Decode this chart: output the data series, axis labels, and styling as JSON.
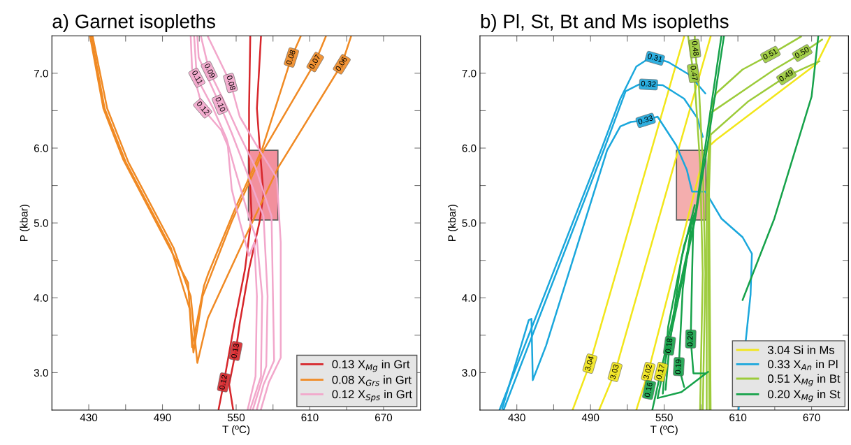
{
  "chart_data": [
    {
      "type": "line",
      "title": "a) Garnet isopleths",
      "xlabel": "T (ºC)",
      "ylabel": "P (kbar)",
      "xlim": [
        400,
        700
      ],
      "ylim": [
        2.5,
        7.5
      ],
      "xticks": [
        430,
        {
          "value": 460,
          "label": null
        },
        490,
        {
          "value": 520,
          "label": null
        },
        550,
        {
          "value": 580,
          "label": null
        },
        610,
        {
          "value": 640,
          "label": null
        },
        670
      ],
      "yticks": [
        {
          "value": 3,
          "label": "3.0"
        },
        {
          "value": 3.5,
          "label": null
        },
        {
          "value": 4,
          "label": "4.0"
        },
        {
          "value": 4.5,
          "label": null
        },
        {
          "value": 5,
          "label": "5.0"
        },
        {
          "value": 5.5,
          "label": null
        },
        {
          "value": 6,
          "label": "6.0"
        },
        {
          "value": 6.5,
          "label": null
        },
        {
          "value": 7,
          "label": "7.0"
        }
      ],
      "grid": false,
      "legend": "bottom right",
      "series": [
        {
          "name": "0.13 X$_{Mg}$ in Grt",
          "color": "#d7262b",
          "x": [
            570.2,
            566.9,
            569.1,
            572.3,
            569.1,
            560.5,
            552.9,
            549.7,
            544.3,
            547.5
          ],
          "values": [
            7.49,
            6.53,
            6.03,
            5.38,
            5.02,
            4.38,
            3.66,
            3.29,
            2.84,
            2.51
          ]
        },
        {
          "color": "#d7262b",
          "x": [
            561.5,
            560.5,
            560.5,
            562.6,
            557.2,
            548.6,
            540,
            535.7
          ],
          "values": [
            7.49,
            6.53,
            5.81,
            5.09,
            4.38,
            3.66,
            2.87,
            2.51
          ]
        },
        {
          "name": "0.08 X$_{Grs}$ in Grt",
          "color": "#f08a24",
          "x": [
            602.5,
            595,
            571.2,
            548.6,
            527,
            523.8,
            514.1,
            510.9,
            494.7,
            458,
            441.9,
            431.1
          ],
          "values": [
            7.49,
            7.21,
            5.99,
            5.17,
            4.31,
            4.16,
            3.34,
            4.2,
            4.7,
            5.85,
            6.53,
            7.49
          ]
        },
        {
          "color": "#f08a24",
          "x": [
            623,
            614.4,
            572.3,
            546.4,
            522.7,
            515.2,
            512.4,
            496.8,
            460.2,
            442.9,
            432.2
          ],
          "values": [
            7.49,
            7.15,
            5.97,
            5.02,
            4.02,
            3.27,
            3.84,
            4.67,
            5.81,
            6.53,
            7.49
          ]
        },
        {
          "color": "#f08a24",
          "x": [
            643.5,
            636,
            584.2,
            559.4,
            527,
            518.4,
            513,
            499,
            462.3,
            445,
            433.2
          ],
          "values": [
            7.49,
            7.12,
            5.74,
            4.88,
            3.73,
            3.13,
            4.02,
            4.67,
            5.81,
            6.53,
            7.49
          ]
        },
        {
          "name": "0.12 X$_{Sps}$ in Grt",
          "color": "#f2a7cb",
          "x": [
            513,
            514.1,
            522.7,
            537.8,
            543.2,
            546.4,
            552.9,
            560.5,
            564.8,
            566.9,
            565.8,
            559.4
          ],
          "values": [
            7.49,
            7.06,
            6.53,
            6.24,
            6.03,
            5.45,
            5.02,
            4.56,
            4.74,
            4.02,
            2.95,
            2.51
          ]
        },
        {
          "color": "#f2a7cb",
          "x": [
            515.8,
            518,
            531.3,
            542.1,
            548.6,
            561.5,
            566.9,
            571.2,
            570.2,
            561.5
          ],
          "values": [
            7.49,
            6.94,
            6.53,
            6.13,
            5.74,
            5.02,
            4.77,
            4.02,
            2.95,
            2.51
          ]
        },
        {
          "color": "#f2a7cb",
          "x": [
            518.4,
            519.5,
            536.7,
            546.4,
            557.2,
            572.3,
            575.6,
            574.5,
            563.7
          ],
          "values": [
            7.49,
            7.21,
            6.58,
            6.2,
            5.74,
            5.09,
            4.02,
            3.09,
            2.51
          ]
        },
        {
          "color": "#f2a7cb",
          "x": [
            521.4,
            528.1,
            542.1,
            552.9,
            565.8,
            578.8,
            580.9,
            572.3,
            566.9
          ],
          "values": [
            7.49,
            7.03,
            6.56,
            6.17,
            5.74,
            5.09,
            3.16,
            2.84,
            2.51
          ]
        },
        {
          "color": "#f2a7cb",
          "x": [
            527,
            545.4,
            552.9,
            565.8,
            583.1,
            586.3,
            586.3,
            576.6,
            570.2
          ],
          "values": [
            7.49,
            6.87,
            6.42,
            6.06,
            5.6,
            4.74,
            3.2,
            2.87,
            2.51
          ]
        },
        {
          "type": "area",
          "color": "#f07585",
          "x": [
            560,
            584,
            584,
            560
          ],
          "values": [
            5.04,
            5.04,
            5.97,
            5.97
          ]
        }
      ],
      "annotations": [
        {
          "text": "0.13",
          "x": 549.7,
          "y": 3.29
        },
        {
          "text": "0.12",
          "x": 540,
          "y": 2.87
        },
        {
          "text": "0.08",
          "x": 595,
          "y": 7.21
        },
        {
          "text": "0.07",
          "x": 614.4,
          "y": 7.15
        },
        {
          "text": "0.06",
          "x": 636,
          "y": 7.12
        },
        {
          "text": "0.12",
          "x": 522.7,
          "y": 6.53
        },
        {
          "text": "0.11",
          "x": 518,
          "y": 6.94
        },
        {
          "text": "0.10",
          "x": 536.7,
          "y": 6.58
        },
        {
          "text": "0.09",
          "x": 528.1,
          "y": 7.03
        },
        {
          "text": "0.08",
          "x": 545.4,
          "y": 6.87
        }
      ]
    },
    {
      "type": "line",
      "title": "b) Pl, St, Bt and Ms isopleths",
      "xlabel": "T (ºC)",
      "ylabel": "P (kbar)",
      "xlim": [
        400,
        700
      ],
      "ylim": [
        2.5,
        7.5
      ],
      "xticks": [
        430,
        {
          "value": 460,
          "label": null
        },
        490,
        {
          "value": 520,
          "label": null
        },
        550,
        {
          "value": 580,
          "label": null
        },
        610,
        {
          "value": 640,
          "label": null
        },
        670
      ],
      "yticks": [
        {
          "value": 3,
          "label": "3.0"
        },
        {
          "value": 3.5,
          "label": null
        },
        {
          "value": 4,
          "label": "4.0"
        },
        {
          "value": 4.5,
          "label": null
        },
        {
          "value": 5,
          "label": "5.0"
        },
        {
          "value": 5.5,
          "label": null
        },
        {
          "value": 6,
          "label": "6.0"
        },
        {
          "value": 6.5,
          "label": null
        },
        {
          "value": 7,
          "label": "7.0"
        }
      ],
      "grid": false,
      "legend": "bottom right",
      "series": [
        {
          "name": "3.04 Si in Ms",
          "color": "#f2e61a",
          "x": [
            475.4,
            489.5,
            566.2
          ],
          "values": [
            2.5,
            3.12,
            7.49
          ]
        },
        {
          "color": "#f2e61a",
          "x": [
            497,
            510,
            587.8
          ],
          "values": [
            2.5,
            3.01,
            7.49
          ]
        },
        {
          "color": "#f2e61a",
          "x": [
            527.3,
            537,
            583.5,
            592.2,
            674.3,
            685.1
          ],
          "values": [
            2.5,
            3.01,
            5.98,
            6.11,
            7.13,
            7.49
          ]
        },
        {
          "name": "0.33 X$_{An}$ in Pl",
          "color": "#1aa7dc",
          "x": [
            418.1,
            439.7,
            441.9,
            443,
            453.8,
            503.5,
            514.3,
            523,
            534.9,
            544.6,
            559.7,
            568.4,
            572.7,
            583.5,
            596.5,
            613.8,
            621.4,
            620.3,
            610.5
          ],
          "values": [
            2.52,
            3.7,
            3.72,
            2.9,
            3.36,
            5.97,
            6.29,
            6.35,
            6.37,
            6.42,
            6.04,
            5.71,
            5.42,
            5.42,
            5.06,
            4.81,
            4.59,
            4.04,
            2.5
          ]
        },
        {
          "color": "#1aa7dc",
          "x": [
            419.2,
            501.4,
            518.6,
            529.5,
            537.2,
            548.9,
            566.2,
            577,
            581.4
          ],
          "values": [
            2.5,
            6.0,
            6.76,
            6.85,
            6.85,
            6.84,
            6.66,
            6.4,
            6.15
          ]
        },
        {
          "color": "#1aa7dc",
          "x": [
            415.9,
            499.2,
            514.3,
            527.3,
            535.9,
            542.4,
            553.2,
            570.5,
            583.5
          ],
          "values": [
            2.5,
            6.0,
            6.66,
            7.09,
            7.18,
            7.2,
            7.15,
            6.98,
            6.73
          ]
        },
        {
          "name": "0.51 X$_{Mg}$ in Bt",
          "color": "#9ccb3a",
          "x": [
            661.4,
            636.5,
            613.8,
            592.2,
            587.8,
            584.6,
            584.6
          ],
          "values": [
            7.49,
            7.25,
            7.05,
            6.73,
            6.51,
            5.42,
            2.5
          ]
        },
        {
          "color": "#9ccb3a",
          "x": [
            678.6,
            662.4,
            639.7,
            613.8,
            587.8,
            585.7,
            586.8
          ],
          "values": [
            7.45,
            7.27,
            7.05,
            6.76,
            6.47,
            5.42,
            2.5
          ]
        },
        {
          "color": "#9ccb3a",
          "x": [
            676.5,
            649.5,
            618.1,
            587.8,
            586.5,
            587.8
          ],
          "values": [
            7.16,
            6.96,
            6.62,
            6.18,
            5.42,
            2.5
          ]
        },
        {
          "color": "#9ccb3a",
          "x": [
            574.9,
            574.9,
            578.1,
            581.4,
            583.5,
            581.4
          ],
          "values": [
            7.49,
            7.33,
            6.87,
            5.79,
            4.33,
            2.5
          ]
        },
        {
          "color": "#9ccb3a",
          "x": [
            569.5,
            573.8,
            574.9,
            579.2,
            581.4,
            579.2
          ],
          "values": [
            7.49,
            7.0,
            6.87,
            5.79,
            4.33,
            2.5
          ]
        },
        {
          "name": "0.20 X$_{Mg}$ in St",
          "color": "#16a24a",
          "x": [
            540.3,
            574.9,
            596.5
          ],
          "values": [
            2.5,
            5.06,
            7.49
          ]
        },
        {
          "color": "#16a24a",
          "x": [
            544.6,
            574.9,
            584.6,
            598.6
          ],
          "values": [
            2.66,
            5.03,
            5.97,
            7.49
          ]
        },
        {
          "color": "#16a24a",
          "x": [
            548.9,
            553.2,
            566.2,
            574.9
          ],
          "values": [
            2.72,
            3.61,
            4.7,
            5.13
          ]
        },
        {
          "color": "#16a24a",
          "x": [
            551.1,
            554.3,
            564,
            574.9
          ],
          "values": [
            2.77,
            3.36,
            4.52,
            5.24
          ]
        },
        {
          "color": "#16a24a",
          "x": [
            566.2,
            561.9,
            565.1,
            572.7
          ],
          "values": [
            2.81,
            3.08,
            4.12,
            5.06
          ]
        },
        {
          "color": "#16a24a",
          "x": [
            583.5,
            573.8,
            571.6,
            572.7,
            573.8
          ],
          "values": [
            2.99,
            2.99,
            3.45,
            4.33,
            5.06
          ]
        },
        {
          "color": "#16a24a",
          "x": [
            544.6,
            564,
            585.7
          ],
          "values": [
            2.66,
            2.74,
            3.01
          ]
        },
        {
          "color": "#16a24a",
          "x": [
            613.8,
            639.7,
            670,
            675.4
          ],
          "values": [
            3.97,
            5.06,
            6.69,
            7.49
          ]
        },
        {
          "type": "area",
          "color": "#f29a9a",
          "x": [
            560,
            584,
            584,
            560
          ],
          "values": [
            5.04,
            5.04,
            5.97,
            5.97
          ]
        }
      ],
      "annotations": [
        {
          "text": "3.04",
          "x": 489.5,
          "y": 3.12
        },
        {
          "text": "3.03",
          "x": 510,
          "y": 3.01
        },
        {
          "text": "3.02",
          "x": 537,
          "y": 3.01
        },
        {
          "text": "0.31",
          "x": 542.4,
          "y": 7.2
        },
        {
          "text": "0.32",
          "x": 537.2,
          "y": 6.85
        },
        {
          "text": "0.33",
          "x": 534.9,
          "y": 6.37
        },
        {
          "text": "0.48",
          "x": 574.9,
          "y": 7.33
        },
        {
          "text": "0.47",
          "x": 573.8,
          "y": 7.0
        },
        {
          "text": "0.51",
          "x": 636.5,
          "y": 7.25
        },
        {
          "text": "0.50",
          "x": 662.4,
          "y": 7.27
        },
        {
          "text": "0.49",
          "x": 649.5,
          "y": 6.96
        },
        {
          "text": "0.16",
          "x": 537.7,
          "y": 2.77
        },
        {
          "text": "0.17",
          "x": 547.4,
          "y": 3.01
        },
        {
          "text": "0.18",
          "x": 554.3,
          "y": 3.36
        },
        {
          "text": "0.19",
          "x": 561.9,
          "y": 3.08
        },
        {
          "text": "0.20",
          "x": 571.6,
          "y": 3.45
        }
      ]
    }
  ]
}
